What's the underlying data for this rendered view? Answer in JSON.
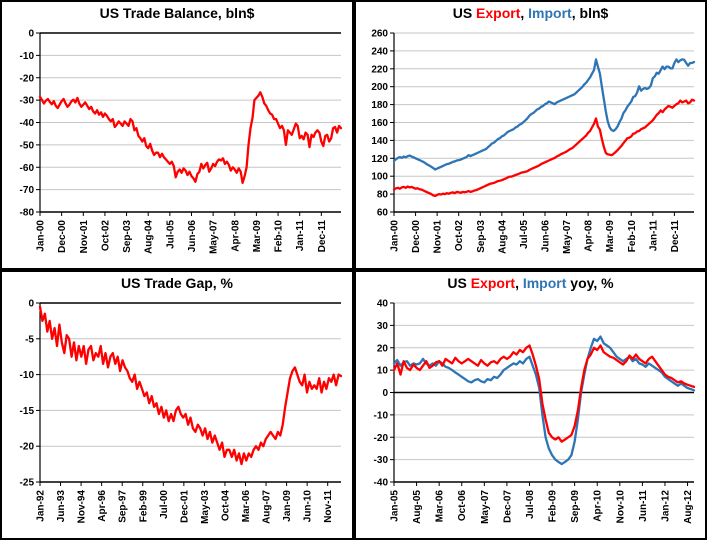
{
  "colors": {
    "red": "#FF0000",
    "blue": "#2E75B6",
    "grid": "#C6C6C6",
    "axis": "#000000"
  },
  "chart_data": [
    {
      "id": "trade-balance",
      "type": "line",
      "title": "US Trade Balance, bln$",
      "title_parts": [
        {
          "text": "US Trade Balance, bln$",
          "color": "#000000"
        }
      ],
      "ylim": [
        -80,
        0
      ],
      "ytick_step": 10,
      "grid": true,
      "legend": "none",
      "x_tick_labels": [
        "Jan-00",
        "Dec-00",
        "Nov-01",
        "Oct-02",
        "Sep-03",
        "Aug-04",
        "Jul-05",
        "Jun-06",
        "May-07",
        "Apr-08",
        "Mar-09",
        "Feb-10",
        "Jan-11",
        "Dec-11"
      ],
      "n_months": 154,
      "tick_step_months": 11,
      "series": [
        {
          "name": "Trade Balance",
          "color": "#FF0000",
          "values": [
            -28.5,
            -30,
            -31.5,
            -30.2,
            -29.5,
            -30.8,
            -31.8,
            -30.5,
            -32.5,
            -33.5,
            -32,
            -30.5,
            -29.5,
            -31.5,
            -33,
            -32,
            -30.5,
            -29.8,
            -31,
            -29,
            -31.5,
            -33,
            -32,
            -31,
            -32.5,
            -34,
            -33,
            -35,
            -36,
            -34.5,
            -36.5,
            -35.5,
            -37.5,
            -36,
            -37,
            -38.5,
            -39.5,
            -38.5,
            -42,
            -41,
            -39.5,
            -40.5,
            -41.5,
            -39.5,
            -40.5,
            -41.5,
            -38.5,
            -39.5,
            -43.5,
            -42.5,
            -46,
            -47,
            -48.5,
            -47,
            -50.5,
            -51.5,
            -49.5,
            -52.5,
            -54.5,
            -53.5,
            -53.5,
            -55.5,
            -54,
            -55.5,
            -56.5,
            -57.5,
            -58.5,
            -57.5,
            -59.5,
            -64.5,
            -62,
            -61,
            -62.5,
            -60.5,
            -61.5,
            -63.5,
            -62,
            -64,
            -65,
            -66.5,
            -63,
            -62,
            -58.5,
            -60.5,
            -59,
            -58,
            -62,
            -60.5,
            -58.5,
            -59.5,
            -57.5,
            -56.5,
            -57,
            -56,
            -58.5,
            -57.5,
            -59,
            -61.5,
            -60,
            -61,
            -62.5,
            -60.5,
            -62,
            -67,
            -64,
            -60,
            -50,
            -42.5,
            -38,
            -30,
            -29,
            -28,
            -26.5,
            -28.5,
            -31.5,
            -32.5,
            -34.5,
            -36,
            -36.5,
            -38.5,
            -38.5,
            -40.5,
            -42.5,
            -41.5,
            -43.5,
            -50,
            -43.5,
            -44.5,
            -45.5,
            -43,
            -40.5,
            -41.5,
            -47,
            -46,
            -47.5,
            -44.5,
            -45.5,
            -51,
            -45.5,
            -46.5,
            -44.5,
            -43.5,
            -44.5,
            -48.5,
            -50.5,
            -46,
            -45.5,
            -48.5,
            -47,
            -42.5,
            -42,
            -44.5,
            -41.5,
            -42.5
          ]
        }
      ]
    },
    {
      "id": "export-import",
      "type": "line",
      "title": "US Export, Import, bln$",
      "title_parts": [
        {
          "text": "US ",
          "color": "#000000"
        },
        {
          "text": "Export",
          "color": "#FF0000"
        },
        {
          "text": ", ",
          "color": "#000000"
        },
        {
          "text": "Import",
          "color": "#2E75B6"
        },
        {
          "text": ", bln$",
          "color": "#000000"
        }
      ],
      "ylim": [
        60,
        260
      ],
      "ytick_step": 20,
      "grid": true,
      "legend": "in-title",
      "x_tick_labels": [
        "Jan-00",
        "Dec-00",
        "Nov-01",
        "Oct-02",
        "Sep-03",
        "Aug-04",
        "Jul-05",
        "Jun-06",
        "May-07",
        "Apr-08",
        "Mar-09",
        "Feb-10",
        "Jan-11",
        "Dec-11"
      ],
      "n_months": 154,
      "tick_step_months": 11,
      "series": [
        {
          "name": "Import",
          "color": "#2E75B6",
          "values": [
            117,
            119,
            120.5,
            121.5,
            120.5,
            122,
            121,
            122.5,
            123,
            122,
            121,
            120,
            119,
            118,
            117,
            116,
            114.5,
            113,
            112,
            110.5,
            109,
            107.5,
            108.5,
            109.5,
            110.5,
            111.5,
            112.5,
            113.5,
            114,
            115,
            116,
            116.5,
            117.5,
            118,
            118.5,
            119.5,
            120.5,
            121.5,
            123.5,
            122.5,
            123.5,
            124.5,
            125.5,
            126.5,
            127.5,
            128.5,
            129.5,
            130.5,
            132.5,
            134.5,
            136.5,
            137.5,
            139.5,
            141.5,
            142.5,
            144.5,
            145.5,
            147.5,
            149.5,
            150.5,
            151.5,
            152.5,
            154.5,
            155.5,
            157.5,
            158.5,
            160.5,
            162.5,
            164.5,
            167.5,
            169.5,
            170.5,
            172.5,
            174.5,
            175.5,
            177.5,
            178.5,
            180.5,
            181.5,
            183.5,
            182.5,
            181.5,
            180.5,
            182.5,
            183.5,
            184.5,
            185.5,
            186.5,
            187.5,
            188.5,
            189.5,
            190.5,
            191.5,
            193.5,
            195.5,
            197.5,
            199.5,
            202.5,
            204.5,
            207.5,
            210.5,
            214.5,
            218.5,
            230.5,
            222.5,
            214.5,
            200.5,
            186.5,
            172.5,
            161.5,
            154.5,
            151.5,
            150.5,
            152.5,
            155.5,
            160.5,
            164.5,
            170.5,
            173.5,
            177.5,
            180.5,
            183.5,
            188.5,
            189.5,
            193.5,
            200.5,
            195.5,
            197.5,
            198.5,
            197.5,
            198.5,
            201.5,
            209.5,
            211.5,
            215.5,
            214.5,
            218.5,
            222.5,
            219.5,
            222.5,
            222.5,
            220.5,
            220.5,
            226.5,
            230.5,
            227.5,
            229.5,
            230.5,
            230,
            226.5,
            223.5,
            226.5,
            226.5,
            227.5
          ]
        },
        {
          "name": "Export",
          "color": "#FF0000",
          "values": [
            85,
            86.5,
            87,
            86,
            87.5,
            88,
            87,
            88.5,
            87.5,
            88,
            87,
            86,
            86.5,
            85.5,
            85,
            84,
            83,
            82,
            81,
            80,
            78.5,
            78,
            79,
            80,
            79.5,
            80.5,
            80,
            81,
            80.5,
            81.5,
            82,
            81,
            82.5,
            82,
            81.5,
            82.5,
            82,
            82.5,
            83.5,
            82.5,
            83,
            84,
            84.5,
            85.5,
            86.5,
            87.5,
            88.5,
            89.5,
            90.5,
            91.5,
            92,
            92.5,
            93.5,
            94.5,
            95,
            95.5,
            96.5,
            97.5,
            98.5,
            99.5,
            99.5,
            100.5,
            101.5,
            102,
            103,
            104,
            104.5,
            105,
            105.5,
            107,
            108,
            109,
            110,
            111,
            112,
            113.5,
            114.5,
            115.5,
            116.5,
            117.5,
            118.5,
            119.5,
            120.5,
            122,
            123,
            124.5,
            125.5,
            126.5,
            127.5,
            129,
            130.5,
            131.5,
            133.5,
            135.5,
            137.5,
            139.5,
            141.5,
            143.5,
            145.5,
            148.5,
            150.5,
            154.5,
            158.5,
            164.5,
            155.5,
            152,
            142,
            133,
            126,
            124.5,
            124,
            123.5,
            125,
            127,
            129,
            131.5,
            134,
            137,
            139.5,
            142.5,
            143,
            144.5,
            147.5,
            148,
            150,
            150.5,
            152.5,
            153.5,
            154.5,
            156.5,
            158.5,
            160.5,
            162.5,
            165.5,
            168.5,
            170.5,
            173.5,
            171.5,
            174.5,
            176.5,
            178.5,
            177.5,
            176.5,
            178.5,
            180.5,
            181.5,
            184.5,
            182.5,
            183.5,
            184.5,
            181.5,
            182.5,
            185.5,
            184.5
          ]
        }
      ]
    },
    {
      "id": "trade-gap",
      "type": "line",
      "title": "US Trade Gap, %",
      "title_parts": [
        {
          "text": "US Trade Gap, %",
          "color": "#000000"
        }
      ],
      "ylim": [
        -25,
        0
      ],
      "ytick_step": 5,
      "grid": true,
      "legend": "none",
      "x_tick_labels": [
        "Jan-92",
        "Jun-93",
        "Nov-94",
        "Apr-96",
        "Sep-97",
        "Feb-99",
        "Jul-00",
        "Dec-01",
        "May-03",
        "Oct-04",
        "Mar-06",
        "Aug-07",
        "Jan-09",
        "Jun-10",
        "Nov-11"
      ],
      "n_months": 250,
      "tick_step_months": 17,
      "series": [
        {
          "name": "Trade Gap %",
          "color": "#FF0000",
          "values": [
            -0.5,
            -2.5,
            -1.5,
            -4,
            -2.5,
            -5,
            -3.5,
            -6,
            -3,
            -5.5,
            -7,
            -4.5,
            -5,
            -7.5,
            -5.5,
            -8,
            -6,
            -7.5,
            -6,
            -8.5,
            -6.5,
            -6,
            -8,
            -7,
            -7.5,
            -6,
            -8.5,
            -7,
            -9,
            -7.5,
            -7,
            -8.5,
            -7.5,
            -9.5,
            -8,
            -9,
            -9.5,
            -10.5,
            -11,
            -10,
            -12,
            -11,
            -12,
            -13,
            -12.5,
            -14,
            -13,
            -14.5,
            -14,
            -15.5,
            -14.5,
            -16,
            -15,
            -16.5,
            -15.5,
            -16.5,
            -15,
            -14.5,
            -15.5,
            -16,
            -15.5,
            -17,
            -16,
            -17.5,
            -18,
            -17,
            -17.5,
            -18.5,
            -17.5,
            -19,
            -18,
            -19.5,
            -18.5,
            -19.5,
            -20.5,
            -19.5,
            -21.5,
            -20.5,
            -20.5,
            -21.5,
            -20.5,
            -22,
            -21,
            -22.5,
            -21,
            -22,
            -21,
            -21.5,
            -20.5,
            -20,
            -20.5,
            -19.5,
            -20,
            -19,
            -18.5,
            -18,
            -18.5,
            -19,
            -18,
            -18.5,
            -17,
            -14.5,
            -12.5,
            -10.5,
            -9.5,
            -9,
            -10,
            -11,
            -11.5,
            -10,
            -12.5,
            -11,
            -12,
            -11.5,
            -12,
            -10.5,
            -12.5,
            -11,
            -12,
            -10.5,
            -11,
            -10,
            -11.5,
            -10,
            -10.2
          ]
        }
      ]
    },
    {
      "id": "yoy",
      "type": "line",
      "title": "US Export, Import yoy, %",
      "title_parts": [
        {
          "text": "US ",
          "color": "#000000"
        },
        {
          "text": "Export",
          "color": "#FF0000"
        },
        {
          "text": ", ",
          "color": "#000000"
        },
        {
          "text": "Import",
          "color": "#2E75B6"
        },
        {
          "text": " yoy, %",
          "color": "#000000"
        }
      ],
      "ylim": [
        -40,
        40
      ],
      "ytick_step": 10,
      "grid": true,
      "legend": "in-title",
      "x_tick_labels": [
        "Jan-05",
        "Aug-05",
        "Mar-06",
        "Oct-06",
        "May-07",
        "Dec-07",
        "Jul-08",
        "Feb-09",
        "Sep-09",
        "Apr-10",
        "Nov-10",
        "Jun-11",
        "Jan-12",
        "Aug-12"
      ],
      "n_months": 94,
      "tick_step_months": 7,
      "series": [
        {
          "name": "Import yoy",
          "color": "#2E75B6",
          "values": [
            13,
            14.5,
            12,
            13.5,
            14,
            12,
            13,
            12.5,
            13,
            15,
            13,
            12,
            13,
            12,
            14,
            13,
            11.5,
            11,
            10,
            9,
            8,
            7,
            6,
            5,
            4.5,
            5.5,
            6,
            5,
            4.5,
            6,
            5.5,
            7,
            6.5,
            8,
            10,
            11,
            12,
            13,
            12.5,
            14,
            13,
            15,
            16,
            12,
            8,
            2,
            -10,
            -20,
            -25,
            -28,
            -30,
            -31,
            -32,
            -31,
            -30,
            -28,
            -22,
            -12,
            0,
            8,
            15,
            20,
            24,
            23,
            25,
            22,
            21,
            20,
            18,
            16,
            15,
            14,
            15,
            16,
            14,
            15,
            13,
            12.5,
            11.5,
            13,
            12,
            11,
            10,
            9,
            7,
            6,
            5,
            4,
            3,
            4,
            3,
            2,
            1.5,
            1
          ]
        },
        {
          "name": "Export yoy",
          "color": "#FF0000",
          "values": [
            10,
            13,
            8,
            14,
            11,
            10,
            12.5,
            11,
            10,
            12,
            14,
            11,
            12,
            13.5,
            14,
            12,
            15,
            14,
            13,
            15.5,
            14,
            13,
            14,
            15,
            14,
            13,
            12,
            14.5,
            13,
            12,
            13.5,
            14,
            13,
            15,
            16,
            15,
            16,
            18,
            17,
            19,
            18,
            20,
            21,
            17,
            12,
            6,
            -5,
            -12,
            -18,
            -20,
            -21,
            -20,
            -22,
            -21,
            -20,
            -19,
            -15,
            -8,
            2,
            10,
            15,
            17,
            20,
            19,
            21,
            18,
            17,
            16,
            15.5,
            14.5,
            13.5,
            12.5,
            14,
            16.5,
            15,
            17,
            15,
            14,
            13,
            15,
            16,
            14,
            12,
            10,
            8,
            7,
            6.5,
            5.5,
            4.5,
            5,
            4,
            3.5,
            3,
            2.5
          ]
        }
      ]
    }
  ]
}
